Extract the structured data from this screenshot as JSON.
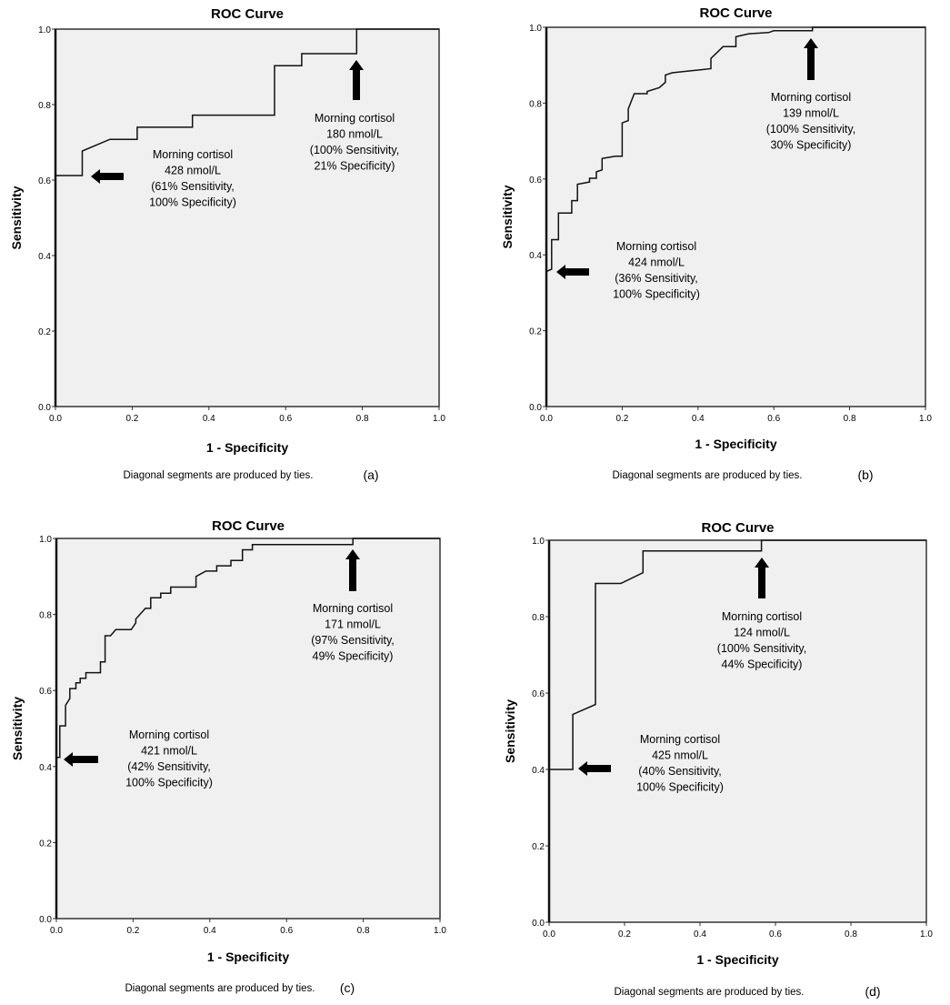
{
  "chart_data": [
    {
      "type": "line",
      "panel_label": "(a)",
      "title": "ROC Curve",
      "xlabel": "1 - Specificity",
      "ylabel": "Sensitivity",
      "xlim": [
        0,
        1
      ],
      "ylim": [
        0,
        1
      ],
      "xticks": [
        "0.0",
        "0.2",
        "0.4",
        "0.6",
        "0.8",
        "1.0"
      ],
      "yticks": [
        "0.0",
        "0.2",
        "0.4",
        "0.6",
        "0.8",
        "1.0"
      ],
      "caption": "Diagonal segments are produced by ties.",
      "series": [
        {
          "name": "ROC",
          "points": [
            [
              0,
              0
            ],
            [
              0,
              0.612
            ],
            [
              0.07,
              0.612
            ],
            [
              0.07,
              0.677
            ],
            [
              0.142,
              0.708
            ],
            [
              0.213,
              0.708
            ],
            [
              0.213,
              0.74
            ],
            [
              0.357,
              0.74
            ],
            [
              0.357,
              0.772
            ],
            [
              0.571,
              0.772
            ],
            [
              0.571,
              0.903
            ],
            [
              0.642,
              0.903
            ],
            [
              0.642,
              0.935
            ],
            [
              0.785,
              0.935
            ],
            [
              0.785,
              1
            ],
            [
              1,
              1
            ]
          ]
        }
      ],
      "annotations": [
        {
          "arrow": "left",
          "lines": [
            "Morning cortisol",
            "428 nmol/L",
            "(61% Sensitivity,",
            "100% Specificity)"
          ]
        },
        {
          "arrow": "up",
          "lines": [
            "Morning cortisol",
            "180 nmol/L",
            "(100% Sensitivity,",
            "21% Specificity)"
          ]
        }
      ]
    },
    {
      "type": "line",
      "panel_label": "(b)",
      "title": "ROC Curve",
      "xlabel": "1 - Specificity",
      "ylabel": "Sensitivity",
      "xlim": [
        0,
        1
      ],
      "ylim": [
        0,
        1
      ],
      "xticks": [
        "0.0",
        "0.2",
        "0.4",
        "0.6",
        "0.8",
        "1.0"
      ],
      "yticks": [
        "0.0",
        "0.2",
        "0.4",
        "0.6",
        "0.8",
        "1.0"
      ],
      "caption": "Diagonal segments are produced by ties.",
      "series": [
        {
          "name": "ROC",
          "points": [
            [
              0,
              0
            ],
            [
              0,
              0.356
            ],
            [
              0.014,
              0.362
            ],
            [
              0.014,
              0.44
            ],
            [
              0.032,
              0.44
            ],
            [
              0.032,
              0.51
            ],
            [
              0.067,
              0.51
            ],
            [
              0.067,
              0.543
            ],
            [
              0.082,
              0.543
            ],
            [
              0.082,
              0.586
            ],
            [
              0.114,
              0.592
            ],
            [
              0.114,
              0.602
            ],
            [
              0.132,
              0.602
            ],
            [
              0.132,
              0.619
            ],
            [
              0.147,
              0.624
            ],
            [
              0.147,
              0.654
            ],
            [
              0.182,
              0.66
            ],
            [
              0.2,
              0.66
            ],
            [
              0.2,
              0.748
            ],
            [
              0.216,
              0.754
            ],
            [
              0.216,
              0.785
            ],
            [
              0.232,
              0.825
            ],
            [
              0.266,
              0.825
            ],
            [
              0.266,
              0.831
            ],
            [
              0.298,
              0.841
            ],
            [
              0.314,
              0.855
            ],
            [
              0.314,
              0.874
            ],
            [
              0.332,
              0.88
            ],
            [
              0.398,
              0.887
            ],
            [
              0.434,
              0.891
            ],
            [
              0.434,
              0.918
            ],
            [
              0.45,
              0.933
            ],
            [
              0.466,
              0.949
            ],
            [
              0.5,
              0.949
            ],
            [
              0.5,
              0.975
            ],
            [
              0.534,
              0.983
            ],
            [
              0.586,
              0.986
            ],
            [
              0.6,
              0.991
            ],
            [
              0.702,
              0.991
            ],
            [
              0.702,
              1
            ],
            [
              1,
              1
            ]
          ]
        }
      ],
      "annotations": [
        {
          "arrow": "up",
          "lines": [
            "Morning cortisol",
            "139 nmol/L",
            "(100% Sensitivity,",
            "30% Specificity)"
          ]
        },
        {
          "arrow": "left",
          "lines": [
            "Morning cortisol",
            "424 nmol/L",
            "(36% Sensitivity,",
            "100% Specificity)"
          ]
        }
      ]
    },
    {
      "type": "line",
      "panel_label": "(c)",
      "title": "ROC Curve",
      "xlabel": "1 - Specificity",
      "ylabel": "Sensitivity",
      "xlim": [
        0,
        1
      ],
      "ylim": [
        0,
        1
      ],
      "xticks": [
        "0.0",
        "0.2",
        "0.4",
        "0.6",
        "0.8",
        "1.0"
      ],
      "yticks": [
        "0.0",
        "0.2",
        "0.4",
        "0.6",
        "0.8",
        "1.0"
      ],
      "caption": "Diagonal segments are produced by ties.",
      "series": [
        {
          "name": "ROC",
          "points": [
            [
              0,
              0
            ],
            [
              0,
              0.424
            ],
            [
              0.009,
              0.424
            ],
            [
              0.009,
              0.507
            ],
            [
              0.024,
              0.507
            ],
            [
              0.024,
              0.561
            ],
            [
              0.035,
              0.579
            ],
            [
              0.035,
              0.605
            ],
            [
              0.051,
              0.605
            ],
            [
              0.051,
              0.62
            ],
            [
              0.062,
              0.62
            ],
            [
              0.062,
              0.632
            ],
            [
              0.077,
              0.632
            ],
            [
              0.077,
              0.647
            ],
            [
              0.115,
              0.647
            ],
            [
              0.115,
              0.675
            ],
            [
              0.127,
              0.675
            ],
            [
              0.127,
              0.744
            ],
            [
              0.141,
              0.744
            ],
            [
              0.155,
              0.76
            ],
            [
              0.195,
              0.76
            ],
            [
              0.207,
              0.778
            ],
            [
              0.207,
              0.788
            ],
            [
              0.232,
              0.816
            ],
            [
              0.246,
              0.816
            ],
            [
              0.246,
              0.844
            ],
            [
              0.272,
              0.844
            ],
            [
              0.272,
              0.856
            ],
            [
              0.298,
              0.856
            ],
            [
              0.298,
              0.872
            ],
            [
              0.364,
              0.872
            ],
            [
              0.364,
              0.9
            ],
            [
              0.39,
              0.914
            ],
            [
              0.418,
              0.914
            ],
            [
              0.418,
              0.928
            ],
            [
              0.455,
              0.928
            ],
            [
              0.455,
              0.942
            ],
            [
              0.485,
              0.942
            ],
            [
              0.485,
              0.97
            ],
            [
              0.511,
              0.97
            ],
            [
              0.511,
              0.984
            ],
            [
              0.773,
              0.984
            ],
            [
              0.773,
              1
            ],
            [
              1,
              1
            ]
          ]
        }
      ],
      "annotations": [
        {
          "arrow": "up",
          "lines": [
            "Morning cortisol",
            "171 nmol/L",
            "(97% Sensitivity,",
            "49% Specificity)"
          ]
        },
        {
          "arrow": "left",
          "lines": [
            "Morning cortisol",
            "421 nmol/L",
            "(42% Sensitivity,",
            "100% Specificity)"
          ]
        }
      ]
    },
    {
      "type": "line",
      "panel_label": "(d)",
      "title": "ROC Curve",
      "xlabel": "1 - Specificity",
      "ylabel": "Sensitivity",
      "xlim": [
        0,
        1
      ],
      "ylim": [
        0,
        1
      ],
      "xticks": [
        "0.0",
        "0.2",
        "0.4",
        "0.6",
        "0.8",
        "1.0"
      ],
      "yticks": [
        "0.0",
        "0.2",
        "0.4",
        "0.6",
        "0.8",
        "1.0"
      ],
      "caption": "Diagonal segments are produced by ties.",
      "series": [
        {
          "name": "ROC",
          "points": [
            [
              0,
              0
            ],
            [
              0,
              0.4
            ],
            [
              0.063,
              0.4
            ],
            [
              0.063,
              0.544
            ],
            [
              0.123,
              0.57
            ],
            [
              0.123,
              0.887
            ],
            [
              0.19,
              0.887
            ],
            [
              0.249,
              0.915
            ],
            [
              0.249,
              0.972
            ],
            [
              0.563,
              0.972
            ],
            [
              0.563,
              1
            ],
            [
              1,
              1
            ]
          ]
        }
      ],
      "annotations": [
        {
          "arrow": "up",
          "lines": [
            "Morning cortisol",
            "124 nmol/L",
            "(100% Sensitivity,",
            "44% Specificity)"
          ]
        },
        {
          "arrow": "left",
          "lines": [
            "Morning cortisol",
            "425 nmol/L",
            "(40% Sensitivity,",
            "100% Specificity)"
          ]
        }
      ]
    }
  ]
}
